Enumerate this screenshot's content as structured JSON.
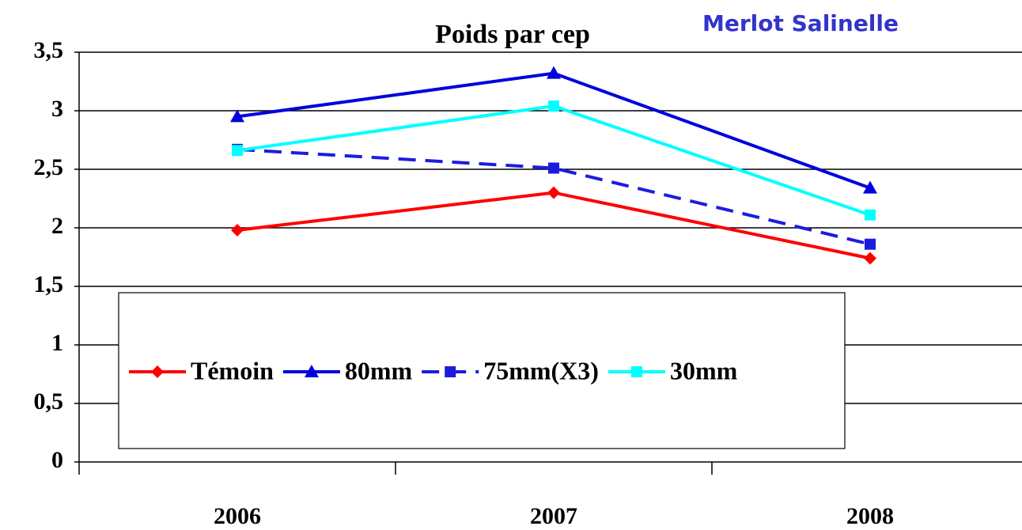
{
  "chart_data": {
    "type": "line",
    "title": "Poids par cep",
    "subtitle": "Merlot Salinelle",
    "categories": [
      "2006",
      "2007",
      "2008"
    ],
    "series": [
      {
        "name": "Témoin",
        "color": "#ff0000",
        "marker": "diamond",
        "line_style": "solid",
        "values": [
          1.98,
          2.3,
          1.74
        ]
      },
      {
        "name": "80mm",
        "color": "#0000dd",
        "marker": "triangle",
        "line_style": "solid",
        "values": [
          2.95,
          3.32,
          2.34
        ]
      },
      {
        "name": "75mm(X3)",
        "color": "#1c1ce0",
        "marker": "square",
        "line_style": "dashed",
        "values": [
          2.67,
          2.51,
          1.86
        ]
      },
      {
        "name": "30mm",
        "color": "#00ffff",
        "marker": "square",
        "line_style": "solid",
        "values": [
          2.66,
          3.04,
          2.11
        ]
      }
    ],
    "ylim": [
      0,
      3.5
    ],
    "yticks": [
      0,
      {
        "value": 0.5,
        "label": "0,5"
      },
      1,
      {
        "value": 1.5,
        "label": "1,5"
      },
      2,
      {
        "value": 2.5,
        "label": "2,5"
      },
      3,
      {
        "value": 3.5,
        "label": "3,5"
      }
    ],
    "grid": true
  }
}
